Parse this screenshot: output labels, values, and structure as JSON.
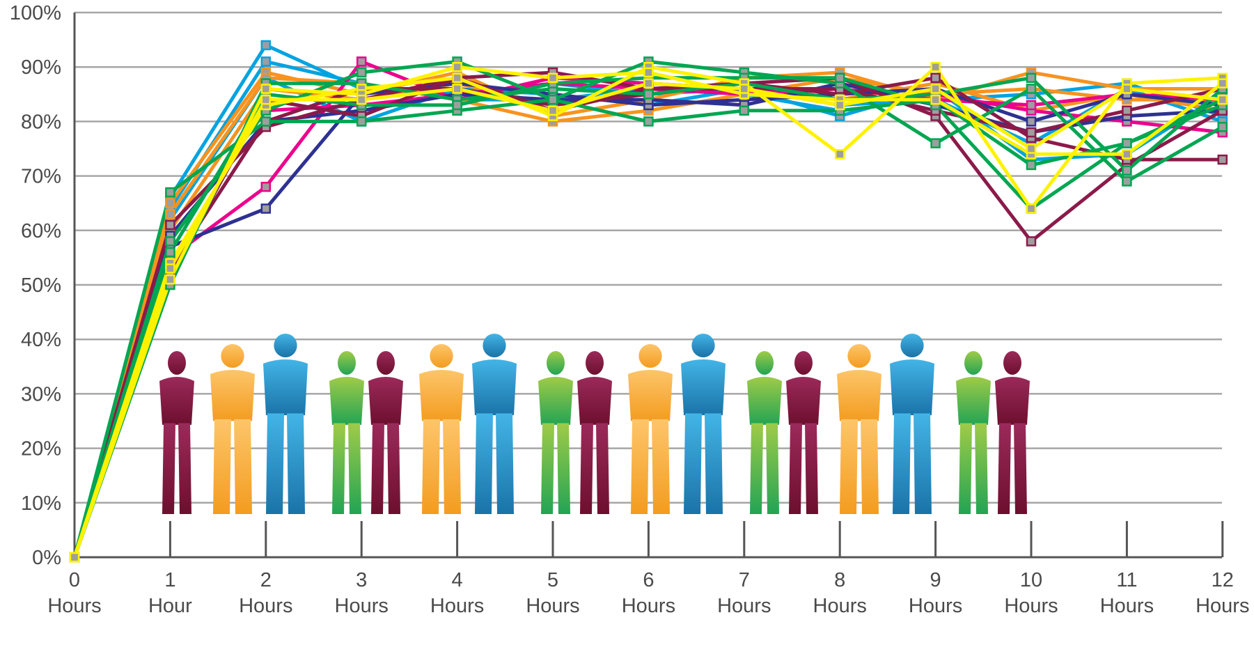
{
  "chart_data": {
    "type": "line",
    "title": "",
    "xlabel": "",
    "ylabel": "",
    "ylim": [
      0,
      100
    ],
    "grid": true,
    "legend": "none",
    "y_ticks": [
      "0%",
      "10%",
      "20%",
      "30%",
      "40%",
      "50%",
      "60%",
      "70%",
      "80%",
      "90%",
      "100%"
    ],
    "x_ticks": [
      {
        "num": "0",
        "unit": "Hours"
      },
      {
        "num": "1",
        "unit": "Hour"
      },
      {
        "num": "2",
        "unit": "Hours"
      },
      {
        "num": "3",
        "unit": "Hours"
      },
      {
        "num": "4",
        "unit": "Hours"
      },
      {
        "num": "5",
        "unit": "Hours"
      },
      {
        "num": "6",
        "unit": "Hours"
      },
      {
        "num": "7",
        "unit": "Hours"
      },
      {
        "num": "8",
        "unit": "Hours"
      },
      {
        "num": "9",
        "unit": "Hours"
      },
      {
        "num": "10",
        "unit": "Hours"
      },
      {
        "num": "11",
        "unit": "Hours"
      },
      {
        "num": "12",
        "unit": "Hours"
      }
    ],
    "x": [
      0,
      1,
      2,
      3,
      4,
      5,
      6,
      7,
      8,
      9,
      10,
      11,
      12
    ],
    "series": [
      {
        "color": "#00a3e0",
        "values": [
          0,
          66,
          94,
          86,
          85,
          87,
          85,
          86,
          83,
          84,
          85,
          87,
          81
        ]
      },
      {
        "color": "#00a3e0",
        "values": [
          0,
          64,
          91,
          87,
          84,
          84,
          86,
          85,
          82,
          84,
          76,
          86,
          80
        ]
      },
      {
        "color": "#00a3e0",
        "values": [
          0,
          62,
          88,
          80,
          86,
          85,
          83,
          86,
          81,
          86,
          73,
          74,
          85
        ]
      },
      {
        "color": "#f7931e",
        "values": [
          0,
          65,
          89,
          85,
          89,
          81,
          84,
          88,
          89,
          84,
          89,
          86,
          86
        ]
      },
      {
        "color": "#f7931e",
        "values": [
          0,
          63,
          88,
          87,
          84,
          80,
          82,
          85,
          88,
          85,
          86,
          84,
          84
        ]
      },
      {
        "color": "#f7931e",
        "values": [
          0,
          60,
          86,
          84,
          87,
          83,
          85,
          87,
          84,
          87,
          82,
          85,
          82
        ]
      },
      {
        "color": "#ec008c",
        "values": [
          0,
          55,
          68,
          91,
          84,
          88,
          87,
          86,
          84,
          85,
          82,
          80,
          78
        ]
      },
      {
        "color": "#ec008c",
        "values": [
          0,
          58,
          82,
          83,
          85,
          87,
          86,
          85,
          86,
          84,
          83,
          85,
          84
        ]
      },
      {
        "color": "#2e3192",
        "values": [
          0,
          57,
          64,
          85,
          87,
          85,
          83,
          84,
          85,
          86,
          80,
          85,
          83
        ]
      },
      {
        "color": "#2e3192",
        "values": [
          0,
          59,
          80,
          82,
          85,
          84,
          84,
          83,
          87,
          83,
          78,
          81,
          82
        ]
      },
      {
        "color": "#8b1a4a",
        "values": [
          0,
          61,
          79,
          84,
          88,
          89,
          86,
          87,
          88,
          81,
          58,
          72,
          82
        ]
      },
      {
        "color": "#8b1a4a",
        "values": [
          0,
          53,
          80,
          86,
          86,
          83,
          85,
          87,
          85,
          88,
          77,
          73,
          73
        ]
      },
      {
        "color": "#8b1a4a",
        "values": [
          0,
          52,
          84,
          81,
          88,
          82,
          86,
          86,
          86,
          82,
          78,
          82,
          86
        ]
      },
      {
        "color": "#00a651",
        "values": [
          0,
          67,
          80,
          80,
          82,
          84,
          80,
          82,
          82,
          84,
          72,
          76,
          84
        ]
      },
      {
        "color": "#00a651",
        "values": [
          0,
          58,
          82,
          89,
          91,
          84,
          91,
          89,
          87,
          76,
          86,
          69,
          79
        ]
      },
      {
        "color": "#00a651",
        "values": [
          0,
          50,
          87,
          87,
          84,
          86,
          85,
          87,
          84,
          85,
          88,
          71,
          86
        ]
      },
      {
        "color": "#00a651",
        "values": [
          0,
          56,
          85,
          83,
          83,
          87,
          88,
          88,
          88,
          83,
          64,
          76,
          83
        ]
      },
      {
        "color": "#fff200",
        "values": [
          0,
          54,
          83,
          86,
          88,
          81,
          90,
          87,
          74,
          90,
          64,
          87,
          88
        ]
      },
      {
        "color": "#fff200",
        "values": [
          0,
          51,
          86,
          85,
          90,
          88,
          89,
          85,
          84,
          84,
          74,
          74,
          87
        ]
      },
      {
        "color": "#fff200",
        "values": [
          0,
          53,
          84,
          84,
          86,
          82,
          87,
          86,
          83,
          86,
          75,
          86,
          84
        ]
      }
    ]
  }
}
